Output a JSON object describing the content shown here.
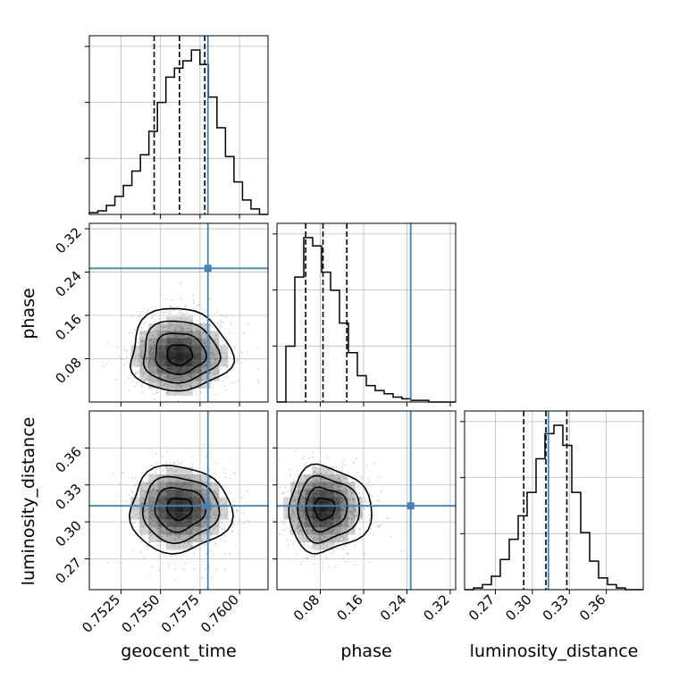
{
  "chart_data": {
    "type": "corner",
    "parameters": [
      "geocent_time",
      "phase",
      "luminosity_distance"
    ],
    "truths": {
      "geocent_time": 0.758,
      "phase": 0.247,
      "luminosity_distance": 0.313
    },
    "ranges": {
      "geocent_time": [
        0.7505,
        0.7618
      ],
      "phase": [
        0.0,
        0.33
      ],
      "luminosity_distance": [
        0.245,
        0.39
      ]
    },
    "ticks": {
      "geocent_time": {
        "values": [
          0.7525,
          0.755,
          0.7575,
          0.76
        ],
        "labels": [
          "0.7525",
          "0.7550",
          "0.7575",
          "0.7600"
        ]
      },
      "phase": {
        "values": [
          0.08,
          0.16,
          0.24,
          0.32
        ],
        "labels": [
          "0.08",
          "0.16",
          "0.24",
          "0.32"
        ]
      },
      "luminosity_distance": {
        "values": [
          0.27,
          0.3,
          0.33,
          0.36
        ],
        "labels": [
          "0.27",
          "0.30",
          "0.33",
          "0.36"
        ]
      }
    },
    "quantiles": {
      "geocent_time": [
        0.7546,
        0.7562,
        0.7578
      ],
      "phase": [
        0.053,
        0.085,
        0.129
      ],
      "luminosity_distance": [
        0.293,
        0.311,
        0.328
      ]
    },
    "histograms": {
      "geocent_time": [
        1,
        2,
        5,
        10,
        16,
        24,
        33,
        46,
        62,
        76,
        81,
        85,
        91,
        83,
        65,
        48,
        32,
        18,
        8,
        3,
        0
      ],
      "phase": [
        0,
        34,
        76,
        100,
        95,
        79,
        68,
        48,
        30,
        16,
        10,
        7,
        5,
        3,
        2,
        1,
        1,
        0,
        0,
        0
      ],
      "luminosity_distance": [
        0,
        1,
        3,
        8,
        18,
        30,
        44,
        58,
        78,
        93,
        98,
        86,
        58,
        34,
        17,
        7,
        3,
        1,
        0,
        0
      ]
    },
    "contour_levels": [
      "0.5 sigma",
      "1 sigma",
      "1.5 sigma",
      "2 sigma"
    ],
    "grid": true,
    "colors": {
      "truth": "#4682b4",
      "hist": "#000000",
      "points": "#999999",
      "density": "#000000"
    },
    "xlabels": [
      "geocent_time",
      "phase",
      "luminosity_distance"
    ],
    "ylabels": [
      "phase",
      "luminosity_distance"
    ]
  }
}
